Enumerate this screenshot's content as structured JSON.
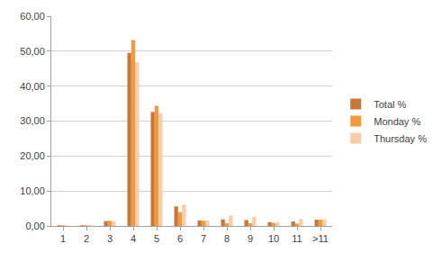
{
  "chart_data": {
    "type": "bar",
    "categories": [
      "1",
      "2",
      "3",
      "4",
      "5",
      "6",
      "7",
      "8",
      "9",
      "10",
      "11",
      ">11"
    ],
    "series": [
      {
        "name": "Total %",
        "color": "#c8773a",
        "values": [
          0.2,
          0.2,
          1.4,
          49.5,
          32.6,
          5.6,
          1.6,
          1.9,
          1.7,
          1.1,
          1.3,
          1.8
        ]
      },
      {
        "name": "Monday %",
        "color": "#f39a3e",
        "values": [
          0.2,
          0.2,
          1.5,
          53.2,
          34.4,
          4.0,
          1.5,
          0.8,
          0.8,
          0.9,
          0.7,
          1.8
        ]
      },
      {
        "name": "Thursday %",
        "color": "#fbcba5",
        "values": [
          0.2,
          0.2,
          1.3,
          46.8,
          32.2,
          6.1,
          1.6,
          3.0,
          2.6,
          1.1,
          2.0,
          1.9
        ]
      }
    ],
    "ylim": [
      0,
      60
    ],
    "yticks": [
      {
        "value": 0,
        "label": "0,00"
      },
      {
        "value": 10,
        "label": "10,00"
      },
      {
        "value": 20,
        "label": "20,00"
      },
      {
        "value": 30,
        "label": "30,00"
      },
      {
        "value": 40,
        "label": "40,00"
      },
      {
        "value": 50,
        "label": "50,00"
      },
      {
        "value": 60,
        "label": "60,00"
      }
    ],
    "grid": true,
    "legend": "right"
  }
}
